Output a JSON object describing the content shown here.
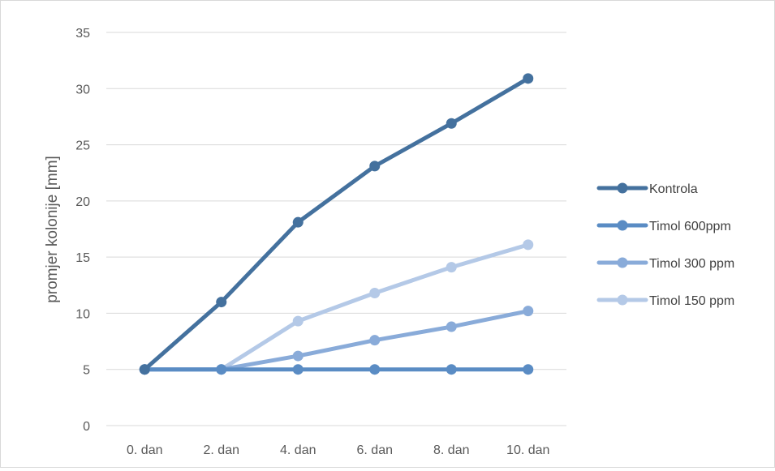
{
  "chart_data": {
    "type": "line",
    "title": "",
    "xlabel": "",
    "ylabel": "promjer kolonije [mm]",
    "categories": [
      "0. dan",
      "2. dan",
      "4. dan",
      "6. dan",
      "8. dan",
      "10. dan"
    ],
    "ylim": [
      0,
      35
    ],
    "yticks": [
      0,
      5,
      10,
      15,
      20,
      25,
      30,
      35
    ],
    "grid": true,
    "legend_position": "right",
    "series": [
      {
        "name": "Kontrola",
        "color": "#44719e",
        "values": [
          5,
          11,
          18.1,
          23.1,
          26.9,
          30.9
        ]
      },
      {
        "name": "Timol 600ppm",
        "color": "#5a8cc4",
        "values": [
          5,
          5,
          5,
          5,
          5,
          5
        ]
      },
      {
        "name": "Timol 300 ppm",
        "color": "#89abd9",
        "values": [
          5,
          5,
          6.2,
          7.6,
          8.8,
          10.2
        ]
      },
      {
        "name": "Timol 150 ppm",
        "color": "#b4c9e7",
        "values": [
          5,
          5,
          9.3,
          11.8,
          14.1,
          16.1
        ]
      }
    ]
  }
}
